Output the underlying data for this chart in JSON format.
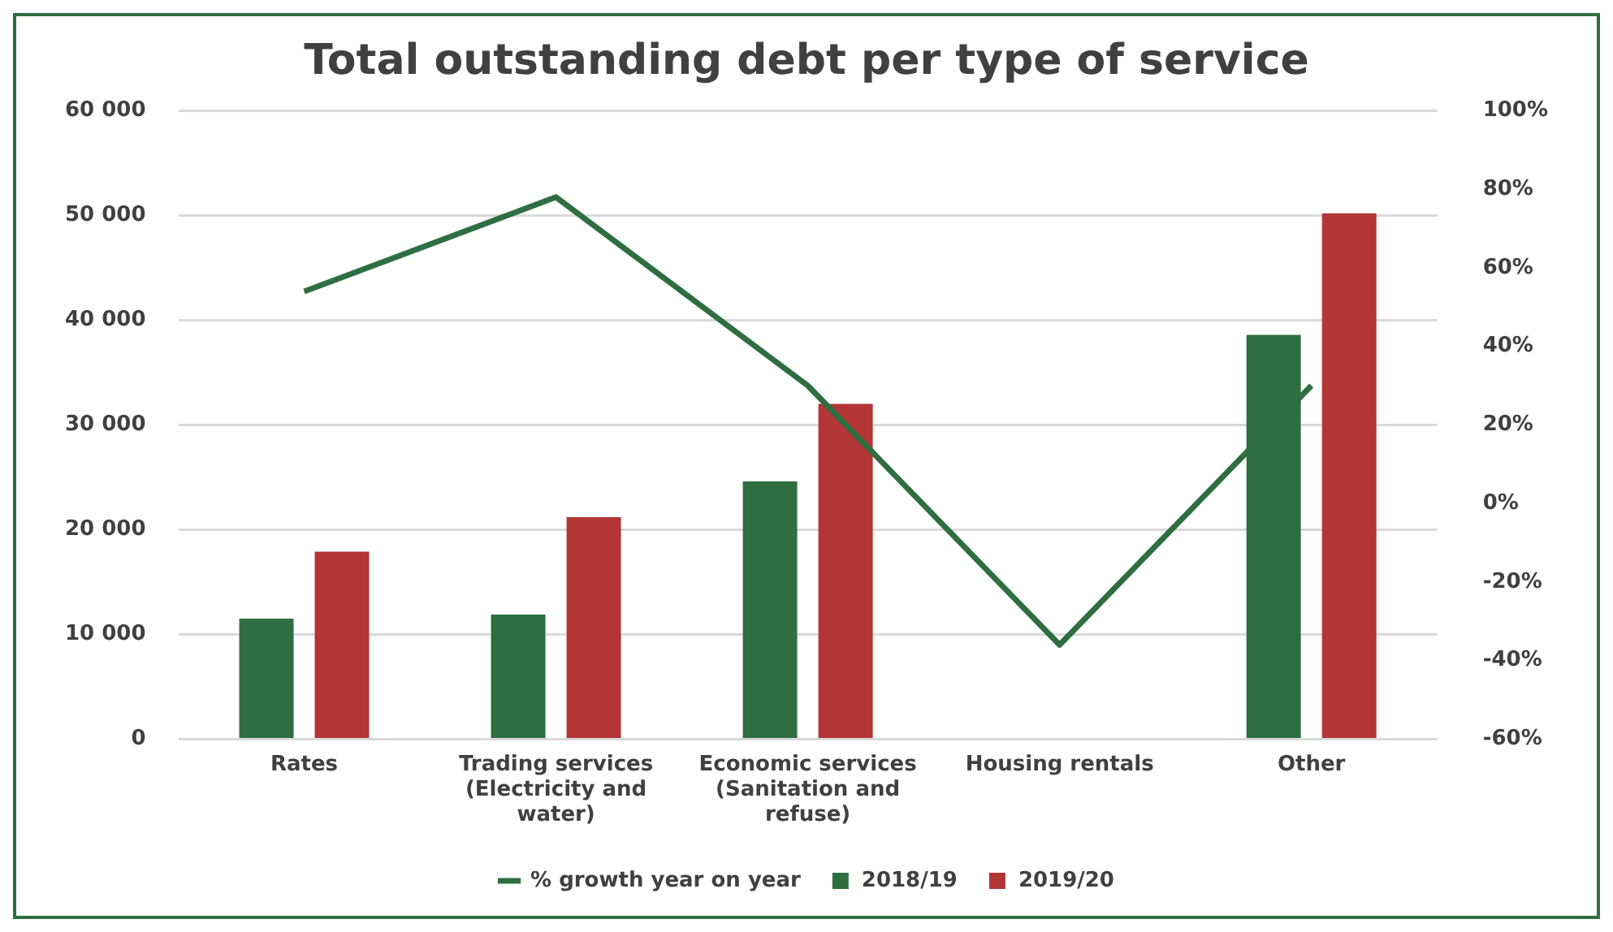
{
  "chart_data": {
    "type": "bar",
    "title": "Total outstanding debt per type of service",
    "categories": [
      "Rates",
      "Trading services (Electricity and water)",
      "Economic services (Sanitation and refuse)",
      "Housing rentals",
      "Other"
    ],
    "series": [
      {
        "name": "2018/19",
        "color": "#2e6e41",
        "values": [
          11500,
          11900,
          24600,
          null,
          38600
        ]
      },
      {
        "name": "2019/20",
        "color": "#b33535",
        "values": [
          17900,
          21200,
          32000,
          null,
          50200
        ]
      },
      {
        "name": "% growth year on year",
        "type": "line",
        "axis": "y2",
        "color": "#2e6e41",
        "values": [
          54,
          78,
          30,
          -36,
          30
        ]
      }
    ],
    "ylim": [
      0,
      60000
    ],
    "yticks": [
      {
        "value": 0,
        "label": "0"
      },
      {
        "value": 10000,
        "label": "10 000"
      },
      {
        "value": 20000,
        "label": "20 000"
      },
      {
        "value": 30000,
        "label": "30 000"
      },
      {
        "value": 40000,
        "label": "40 000"
      },
      {
        "value": 50000,
        "label": "50 000"
      },
      {
        "value": 60000,
        "label": "60 000"
      }
    ],
    "y2lim": [
      -60,
      100
    ],
    "y2ticks": [
      {
        "value": -60,
        "label": "-60%"
      },
      {
        "value": -40,
        "label": "-40%"
      },
      {
        "value": -20,
        "label": "-20%"
      },
      {
        "value": 0,
        "label": "0%"
      },
      {
        "value": 20,
        "label": "20%"
      },
      {
        "value": 40,
        "label": "40%"
      },
      {
        "value": 60,
        "label": "60%"
      },
      {
        "value": 80,
        "label": "80%"
      },
      {
        "value": 100,
        "label": "100%"
      }
    ],
    "grid": "y",
    "legend": "bottom",
    "marker": "none",
    "line_style": "solid"
  }
}
